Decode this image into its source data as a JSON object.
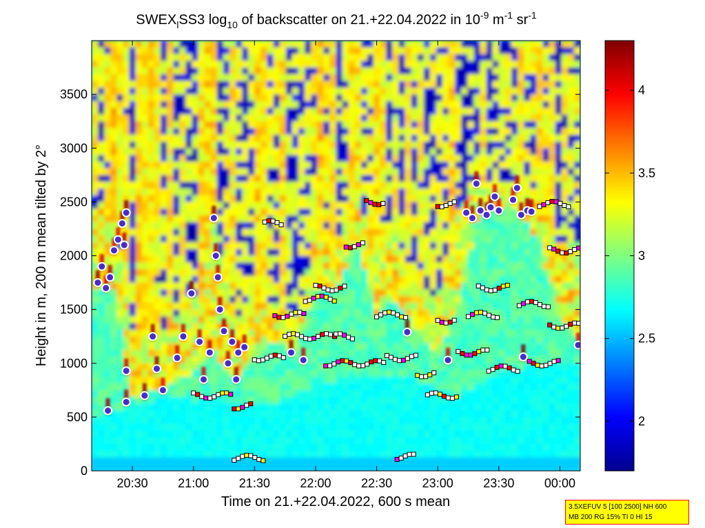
{
  "title": {
    "prefix": "SWEX",
    "sub1": "l",
    "mid": "SS3 log",
    "sub2": "10",
    "rest": " of backscatter on 21.+22.04.2022 in 10",
    "sup1": "-9",
    "unit1": " m",
    "sup2": "-1",
    "unit2": " sr",
    "sup3": "-1"
  },
  "info_box": {
    "line1": "3.5XEFUV 5 [100 2500] NH 600",
    "line2": "MB 200 RG 15% TI 0 HI 15"
  },
  "chart_data": {
    "type": "heatmap",
    "xlabel": "Time on 21.+22.04.2022, 600 s mean",
    "ylabel": "Height in m, 200 m mean tilted by 2°",
    "xlim": [
      "20:10",
      "00:10"
    ],
    "ylim": [
      0,
      4000
    ],
    "x_ticks": [
      "20:30",
      "21:00",
      "21:30",
      "22:00",
      "22:30",
      "23:00",
      "23:30",
      "00:00"
    ],
    "y_ticks": [
      0,
      500,
      1000,
      1500,
      2000,
      2500,
      3000,
      3500
    ],
    "colorbar": {
      "range": [
        1.7,
        4.3
      ],
      "ticks": [
        2,
        2.5,
        3,
        3.5,
        4
      ],
      "colormap": [
        "#00008f",
        "#0000ff",
        "#00ffff",
        "#ffff00",
        "#ff0000",
        "#800000"
      ]
    },
    "bands": [
      {
        "t": "20:10",
        "cloud": 1650,
        "cloud_top": 2450,
        "aerosol": 500
      },
      {
        "t": "20:20",
        "cloud": 1750,
        "cloud_top": 2400,
        "aerosol": 550
      },
      {
        "t": "20:30",
        "cloud": 700,
        "cloud_top": 1300,
        "aerosol": 600
      },
      {
        "t": "20:40",
        "cloud": 750,
        "cloud_top": 1250,
        "aerosol": 650
      },
      {
        "t": "20:50",
        "cloud": 800,
        "cloud_top": 1400,
        "aerosol": 700
      },
      {
        "t": "21:00",
        "cloud": 900,
        "cloud_top": 1600,
        "aerosol": 650
      },
      {
        "t": "21:10",
        "cloud": 1100,
        "cloud_top": 2300,
        "aerosol": 700
      },
      {
        "t": "21:20",
        "cloud": 850,
        "cloud_top": 1400,
        "aerosol": 600
      },
      {
        "t": "21:30",
        "cloud": 1050,
        "cloud_top": 1500,
        "aerosol": 600
      },
      {
        "t": "21:40",
        "cloud": 1200,
        "cloud_top": 1600,
        "aerosol": 650
      },
      {
        "t": "21:50",
        "cloud": 1100,
        "cloud_top": 1400,
        "aerosol": 700
      },
      {
        "t": "22:00",
        "cloud": 1700,
        "cloud_top": 2200,
        "aerosol": 800
      },
      {
        "t": "22:10",
        "cloud": 1700,
        "cloud_top": 2100,
        "aerosol": 850
      },
      {
        "t": "22:20",
        "cloud": 2100,
        "cloud_top": 2500,
        "aerosol": 900
      },
      {
        "t": "22:30",
        "cloud": 1450,
        "cloud_top": 2100,
        "aerosol": 900
      },
      {
        "t": "22:40",
        "cloud": 1600,
        "cloud_top": 2200,
        "aerosol": 900
      },
      {
        "t": "22:50",
        "cloud": 1250,
        "cloud_top": 1700,
        "aerosol": 850
      },
      {
        "t": "23:00",
        "cloud": 1050,
        "cloud_top": 1600,
        "aerosol": 750
      },
      {
        "t": "23:10",
        "cloud": 1500,
        "cloud_top": 2450,
        "aerosol": 700
      },
      {
        "t": "23:20",
        "cloud": 2400,
        "cloud_top": 2700,
        "aerosol": 800
      },
      {
        "t": "23:30",
        "cloud": 2450,
        "cloud_top": 2650,
        "aerosol": 900
      },
      {
        "t": "23:40",
        "cloud": 2400,
        "cloud_top": 2600,
        "aerosol": 950
      },
      {
        "t": "23:50",
        "cloud": 2100,
        "cloud_top": 2500,
        "aerosol": 1000
      },
      {
        "t": "00:00",
        "cloud": 1400,
        "cloud_top": 2100,
        "aerosol": 1000
      },
      {
        "t": "00:10",
        "cloud": 1200,
        "cloud_top": 2100,
        "aerosol": 1000
      }
    ],
    "cloud_base_points": [
      {
        "t": "20:13",
        "h": 1750
      },
      {
        "t": "20:15",
        "h": 1900
      },
      {
        "t": "20:17",
        "h": 1700
      },
      {
        "t": "20:19",
        "h": 1800
      },
      {
        "t": "20:21",
        "h": 2050
      },
      {
        "t": "20:23",
        "h": 2150
      },
      {
        "t": "20:25",
        "h": 2300
      },
      {
        "t": "20:27",
        "h": 2400
      },
      {
        "t": "20:26",
        "h": 2100
      },
      {
        "t": "20:18",
        "h": 560
      },
      {
        "t": "20:27",
        "h": 640
      },
      {
        "t": "20:27",
        "h": 930
      },
      {
        "t": "20:36",
        "h": 700
      },
      {
        "t": "20:40",
        "h": 1250
      },
      {
        "t": "20:42",
        "h": 950
      },
      {
        "t": "20:45",
        "h": 750
      },
      {
        "t": "20:52",
        "h": 1050
      },
      {
        "t": "20:55",
        "h": 1250
      },
      {
        "t": "20:59",
        "h": 1650
      },
      {
        "t": "21:03",
        "h": 1200
      },
      {
        "t": "21:05",
        "h": 850
      },
      {
        "t": "21:08",
        "h": 1100
      },
      {
        "t": "21:10",
        "h": 2350
      },
      {
        "t": "21:11",
        "h": 2000
      },
      {
        "t": "21:12",
        "h": 1800
      },
      {
        "t": "21:13",
        "h": 1500
      },
      {
        "t": "21:15",
        "h": 1300
      },
      {
        "t": "21:17",
        "h": 1000
      },
      {
        "t": "21:19",
        "h": 1200
      },
      {
        "t": "21:21",
        "h": 850
      },
      {
        "t": "21:22",
        "h": 1100
      },
      {
        "t": "21:25",
        "h": 1150
      },
      {
        "t": "21:48",
        "h": 1100
      },
      {
        "t": "21:54",
        "h": 1030
      },
      {
        "t": "22:45",
        "h": 1290
      },
      {
        "t": "23:05",
        "h": 1030
      },
      {
        "t": "23:14",
        "h": 2400
      },
      {
        "t": "23:17",
        "h": 2350
      },
      {
        "t": "23:19",
        "h": 2670
      },
      {
        "t": "23:21",
        "h": 2420
      },
      {
        "t": "23:24",
        "h": 2380
      },
      {
        "t": "23:26",
        "h": 2450
      },
      {
        "t": "23:28",
        "h": 2550
      },
      {
        "t": "23:30",
        "h": 2420
      },
      {
        "t": "23:37",
        "h": 2520
      },
      {
        "t": "23:39",
        "h": 2630
      },
      {
        "t": "23:41",
        "h": 2380
      },
      {
        "t": "23:44",
        "h": 2420
      },
      {
        "t": "23:46",
        "h": 2410
      },
      {
        "t": "23:42",
        "h": 1060
      },
      {
        "t": "00:09",
        "h": 1170
      }
    ],
    "layer_segments": [
      {
        "t0": "21:00",
        "t1": "21:20",
        "h": 700
      },
      {
        "t0": "21:20",
        "t1": "21:30",
        "h": 600
      },
      {
        "t0": "21:20",
        "t1": "21:35",
        "h": 120
      },
      {
        "t0": "21:30",
        "t1": "21:45",
        "h": 1050
      },
      {
        "t0": "21:35",
        "t1": "21:45",
        "h": 2300
      },
      {
        "t0": "21:40",
        "t1": "21:55",
        "h": 1450
      },
      {
        "t0": "21:45",
        "t1": "22:10",
        "h": 1250
      },
      {
        "t0": "21:55",
        "t1": "22:10",
        "h": 1600
      },
      {
        "t0": "22:00",
        "t1": "22:15",
        "h": 1700
      },
      {
        "t0": "22:05",
        "t1": "22:35",
        "h": 1000
      },
      {
        "t0": "22:10",
        "t1": "22:20",
        "h": 1250
      },
      {
        "t0": "22:15",
        "t1": "22:25",
        "h": 2100
      },
      {
        "t0": "22:25",
        "t1": "22:35",
        "h": 2500
      },
      {
        "t0": "22:30",
        "t1": "22:45",
        "h": 1450
      },
      {
        "t0": "22:35",
        "t1": "22:50",
        "h": 1050
      },
      {
        "t0": "22:40",
        "t1": "22:50",
        "h": 130
      },
      {
        "t0": "22:50",
        "t1": "23:00",
        "h": 900
      },
      {
        "t0": "22:55",
        "t1": "23:10",
        "h": 700
      },
      {
        "t0": "23:00",
        "t1": "23:10",
        "h": 1400
      },
      {
        "t0": "23:00",
        "t1": "23:10",
        "h": 2480
      },
      {
        "t0": "23:10",
        "t1": "23:25",
        "h": 1100
      },
      {
        "t0": "23:15",
        "t1": "23:30",
        "h": 1450
      },
      {
        "t0": "23:20",
        "t1": "23:35",
        "h": 1700
      },
      {
        "t0": "23:25",
        "t1": "23:40",
        "h": 950
      },
      {
        "t0": "23:40",
        "t1": "23:55",
        "h": 1550
      },
      {
        "t0": "23:45",
        "t1": "00:00",
        "h": 1000
      },
      {
        "t0": "23:50",
        "t1": "00:05",
        "h": 2480
      },
      {
        "t0": "23:55",
        "t1": "00:10",
        "h": 2050
      },
      {
        "t0": "23:55",
        "t1": "00:10",
        "h": 1350
      }
    ]
  }
}
